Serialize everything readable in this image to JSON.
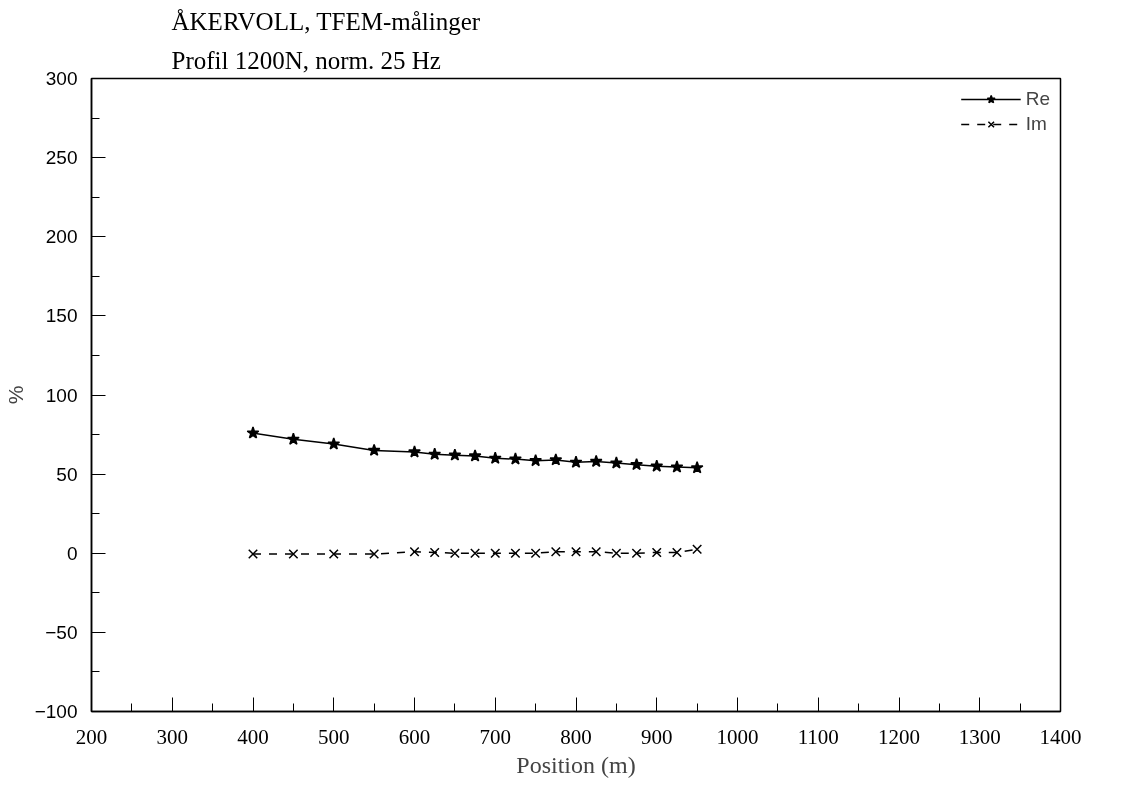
{
  "chart_data": {
    "type": "line",
    "title": "ÅKERVOLL,  TFEM-målinger",
    "subtitle": "Profil 1200N,  norm. 25 Hz",
    "xlabel": "Position (m)",
    "ylabel": "%",
    "x": [
      400,
      450,
      500,
      550,
      600,
      625,
      650,
      675,
      700,
      725,
      750,
      775,
      800,
      825,
      850,
      875,
      900,
      925,
      950
    ],
    "series": [
      {
        "name": "Re",
        "color": "#000000",
        "marker": "star",
        "line_style": "solid",
        "values": [
          76,
          72,
          69,
          65,
          64,
          62.5,
          62,
          61.5,
          60,
          59.5,
          58.5,
          59,
          57.5,
          58,
          57,
          56,
          55,
          54.5,
          54
        ]
      },
      {
        "name": "Im",
        "color": "#000000",
        "marker": "cross",
        "line_style": "dashed",
        "values": [
          -0.5,
          -0.5,
          -0.5,
          -0.5,
          1,
          0.5,
          0,
          0,
          0,
          0,
          0,
          1,
          1,
          1,
          0,
          0,
          0.5,
          0.5,
          2.5
        ]
      }
    ],
    "xlim": [
      200,
      1400
    ],
    "xticks": [
      200,
      300,
      400,
      500,
      600,
      700,
      800,
      900,
      1000,
      1100,
      1200,
      1300,
      1400
    ],
    "ylim": [
      -100,
      300
    ],
    "yticks": [
      -100,
      -50,
      0,
      50,
      100,
      150,
      200,
      250,
      300
    ],
    "grid": false,
    "legend": "top right"
  }
}
